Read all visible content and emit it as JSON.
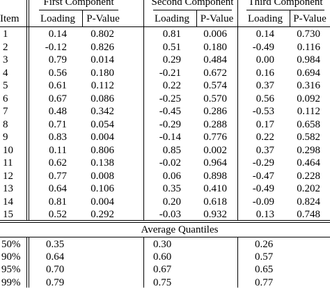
{
  "table": {
    "groups": [
      "First Component",
      "Second Component",
      "Third Component"
    ],
    "item_label": "Item",
    "subheaders": [
      "Loading",
      "P-Value",
      "Loading",
      "P-Value",
      "Loading",
      "P-Value"
    ],
    "rows": [
      [
        "1",
        "0.14",
        "0.802",
        "0.81",
        "0.006",
        "0.14",
        "0.730"
      ],
      [
        "2",
        "-0.12",
        "0.826",
        "0.51",
        "0.180",
        "-0.49",
        "0.116"
      ],
      [
        "3",
        "0.79",
        "0.014",
        "0.29",
        "0.484",
        "0.00",
        "0.984"
      ],
      [
        "4",
        "0.56",
        "0.180",
        "-0.21",
        "0.672",
        "0.16",
        "0.694"
      ],
      [
        "5",
        "0.61",
        "0.112",
        "0.22",
        "0.574",
        "0.37",
        "0.316"
      ],
      [
        "6",
        "0.67",
        "0.086",
        "-0.25",
        "0.570",
        "0.56",
        "0.092"
      ],
      [
        "7",
        "0.48",
        "0.342",
        "-0.45",
        "0.286",
        "-0.53",
        "0.112"
      ],
      [
        "8",
        "0.71",
        "0.054",
        "-0.29",
        "0.288",
        "0.17",
        "0.658"
      ],
      [
        "9",
        "0.83",
        "0.004",
        "-0.14",
        "0.776",
        "0.22",
        "0.582"
      ],
      [
        "10",
        "0.11",
        "0.806",
        "0.85",
        "0.002",
        "0.37",
        "0.298"
      ],
      [
        "11",
        "0.62",
        "0.138",
        "-0.02",
        "0.964",
        "-0.29",
        "0.464"
      ],
      [
        "12",
        "0.77",
        "0.008",
        "0.06",
        "0.898",
        "-0.47",
        "0.228"
      ],
      [
        "13",
        "0.64",
        "0.106",
        "0.35",
        "0.410",
        "-0.49",
        "0.202"
      ],
      [
        "14",
        "0.81",
        "0.004",
        "0.20",
        "0.618",
        "-0.09",
        "0.824"
      ],
      [
        "15",
        "0.52",
        "0.292",
        "-0.03",
        "0.932",
        "0.13",
        "0.748"
      ]
    ],
    "quantiles_title": "Average Quantiles",
    "quantiles": [
      [
        "50%",
        "0.35",
        "0.30",
        "0.26"
      ],
      [
        "90%",
        "0.64",
        "0.60",
        "0.57"
      ],
      [
        "95%",
        "0.70",
        "0.67",
        "0.65"
      ],
      [
        "99%",
        "0.79",
        "0.75",
        "0.77"
      ]
    ]
  }
}
